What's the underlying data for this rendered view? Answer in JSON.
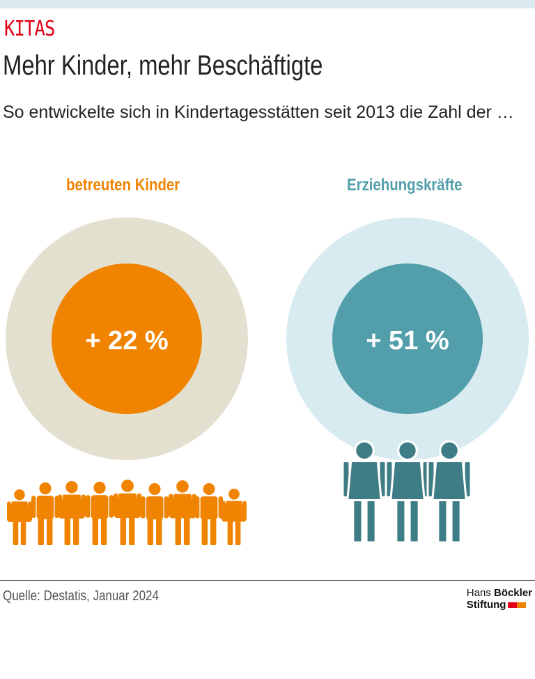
{
  "kicker": "KITAS",
  "title": "Mehr Kinder, mehr Beschäftigte",
  "subtitle": "So entwickelte sich in Kindertagesstätten seit 2013 die Zahl der …",
  "panels": [
    {
      "label": "betreuten Kinder",
      "value": "+ 22 %",
      "accent": "#f08300",
      "ring": "#e4e0d0",
      "icon": "children-icons",
      "count": 9
    },
    {
      "label": "Erziehungskräfte",
      "value": "+ 51 %",
      "accent": "#529fab",
      "ring": "#d8ebf0",
      "figure": "#3f7d86",
      "icon": "adults-icons",
      "count": 3
    }
  ],
  "source": "Quelle: Destatis, Januar 2024",
  "logo": {
    "line1a": "Hans ",
    "line1b": "Böckler",
    "line2": "Stiftung",
    "colors": [
      "#e2001a",
      "#f08300"
    ]
  }
}
